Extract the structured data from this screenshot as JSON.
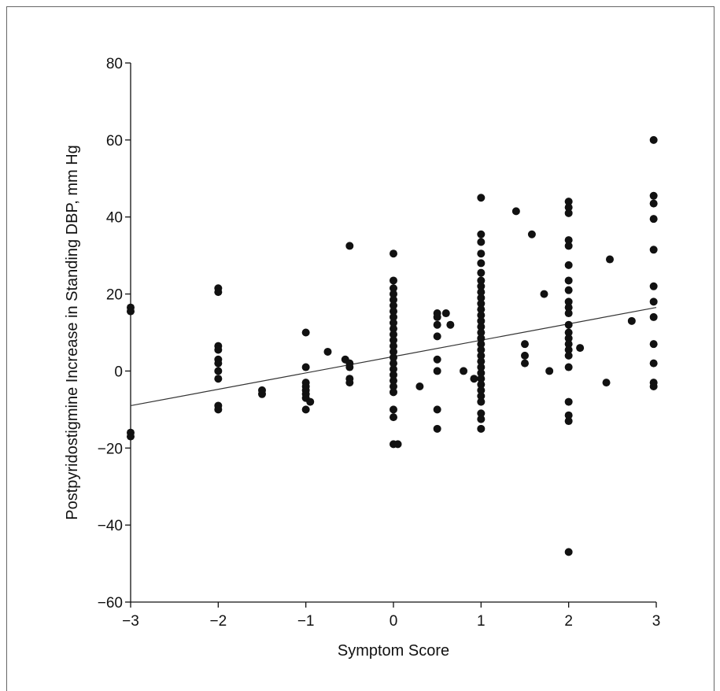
{
  "chart_data": {
    "type": "scatter",
    "xlabel": "Symptom Score",
    "ylabel": "Postpyridostigmine Increase in Standing DBP, mm Hg",
    "xlim": [
      -3,
      3
    ],
    "ylim": [
      -60,
      80
    ],
    "xticks": [
      -3,
      -2,
      -1,
      0,
      1,
      2,
      3
    ],
    "yticks": [
      -60,
      -40,
      -20,
      0,
      20,
      40,
      60,
      80
    ],
    "x_tick_labels": [
      "−3",
      "−2",
      "−1",
      "0",
      "1",
      "2",
      "3"
    ],
    "y_tick_labels": [
      "−60",
      "−40",
      "−20",
      "0",
      "20",
      "40",
      "60",
      "80"
    ],
    "grid": false,
    "trendline": {
      "x": [
        -3,
        3
      ],
      "y": [
        -9,
        16.5
      ]
    },
    "colors": {
      "points": "#111111",
      "line": "#333333",
      "axis": "#111111"
    },
    "points": [
      [
        -3,
        16.5
      ],
      [
        -3,
        15.5
      ],
      [
        -3,
        -16
      ],
      [
        -3,
        -17
      ],
      [
        -2,
        21.5
      ],
      [
        -2,
        20.5
      ],
      [
        -2,
        6.5
      ],
      [
        -2,
        5.5
      ],
      [
        -2,
        3
      ],
      [
        -2,
        2
      ],
      [
        -2,
        0
      ],
      [
        -2,
        -2
      ],
      [
        -2,
        -9
      ],
      [
        -2,
        -10
      ],
      [
        -1.5,
        -5
      ],
      [
        -1.5,
        -6
      ],
      [
        -1,
        10
      ],
      [
        -1,
        1
      ],
      [
        -1,
        -3
      ],
      [
        -1,
        -4
      ],
      [
        -1,
        -5
      ],
      [
        -1,
        -6
      ],
      [
        -1,
        -7
      ],
      [
        -1,
        -10
      ],
      [
        -0.95,
        -8
      ],
      [
        -0.75,
        5
      ],
      [
        -0.5,
        32.5
      ],
      [
        -0.55,
        3
      ],
      [
        -0.5,
        2
      ],
      [
        -0.5,
        1
      ],
      [
        -0.5,
        -2
      ],
      [
        -0.5,
        -3
      ],
      [
        0,
        30.5
      ],
      [
        0,
        23.5
      ],
      [
        0,
        21.5
      ],
      [
        0,
        20
      ],
      [
        0,
        18.5
      ],
      [
        0,
        17
      ],
      [
        0,
        15.5
      ],
      [
        0,
        14
      ],
      [
        0,
        12.5
      ],
      [
        0,
        11
      ],
      [
        0,
        9.5
      ],
      [
        0,
        8
      ],
      [
        0,
        6.5
      ],
      [
        0,
        5
      ],
      [
        0,
        3.5
      ],
      [
        0,
        2
      ],
      [
        0,
        0.5
      ],
      [
        0,
        -1
      ],
      [
        0,
        -2.5
      ],
      [
        0,
        -4
      ],
      [
        0,
        -5.5
      ],
      [
        0,
        -10
      ],
      [
        0,
        -12
      ],
      [
        0,
        -19
      ],
      [
        0.05,
        -19
      ],
      [
        0.3,
        -4
      ],
      [
        0.5,
        15
      ],
      [
        0.5,
        14
      ],
      [
        0.5,
        12
      ],
      [
        0.5,
        9
      ],
      [
        0.5,
        3
      ],
      [
        0.5,
        0
      ],
      [
        0.5,
        -10
      ],
      [
        0.5,
        -15
      ],
      [
        0.6,
        15
      ],
      [
        0.65,
        12
      ],
      [
        0.8,
        0
      ],
      [
        0.92,
        -2
      ],
      [
        1,
        45
      ],
      [
        1,
        35.5
      ],
      [
        1,
        33.5
      ],
      [
        1,
        30.5
      ],
      [
        1,
        28
      ],
      [
        1,
        25.5
      ],
      [
        1,
        23.5
      ],
      [
        1,
        22
      ],
      [
        1,
        20.5
      ],
      [
        1,
        19
      ],
      [
        1,
        17.5
      ],
      [
        1,
        16
      ],
      [
        1,
        14.5
      ],
      [
        1,
        13
      ],
      [
        1,
        11.5
      ],
      [
        1,
        10
      ],
      [
        1,
        8.5
      ],
      [
        1,
        7
      ],
      [
        1,
        5.5
      ],
      [
        1,
        4
      ],
      [
        1,
        2.5
      ],
      [
        1,
        1
      ],
      [
        1,
        -0.5
      ],
      [
        1,
        -2
      ],
      [
        1,
        -3.5
      ],
      [
        1,
        -5
      ],
      [
        1,
        -6.5
      ],
      [
        1,
        -8
      ],
      [
        1,
        -11
      ],
      [
        1,
        -12.5
      ],
      [
        1,
        -15
      ],
      [
        1.4,
        41.5
      ],
      [
        1.5,
        7
      ],
      [
        1.5,
        4
      ],
      [
        1.5,
        2
      ],
      [
        1.58,
        35.5
      ],
      [
        1.72,
        20
      ],
      [
        1.78,
        0
      ],
      [
        2,
        44
      ],
      [
        2,
        42.5
      ],
      [
        2,
        41
      ],
      [
        2,
        34
      ],
      [
        2,
        32.5
      ],
      [
        2,
        27.5
      ],
      [
        2,
        23.5
      ],
      [
        2,
        21
      ],
      [
        2,
        18
      ],
      [
        2,
        16.5
      ],
      [
        2,
        15
      ],
      [
        2,
        12
      ],
      [
        2,
        10
      ],
      [
        2,
        8.5
      ],
      [
        2,
        7
      ],
      [
        2,
        5.5
      ],
      [
        2,
        4
      ],
      [
        2,
        1
      ],
      [
        2,
        -8
      ],
      [
        2,
        -11.5
      ],
      [
        2,
        -13
      ],
      [
        2,
        -47
      ],
      [
        2.13,
        6
      ],
      [
        2.43,
        -3
      ],
      [
        2.47,
        29
      ],
      [
        2.72,
        13
      ],
      [
        2.97,
        60
      ],
      [
        2.97,
        45.5
      ],
      [
        2.97,
        43.5
      ],
      [
        2.97,
        39.5
      ],
      [
        2.97,
        31.5
      ],
      [
        2.97,
        22
      ],
      [
        2.97,
        18
      ],
      [
        2.97,
        14
      ],
      [
        2.97,
        7
      ],
      [
        2.97,
        2
      ],
      [
        2.97,
        -3
      ],
      [
        2.97,
        -4
      ]
    ]
  }
}
